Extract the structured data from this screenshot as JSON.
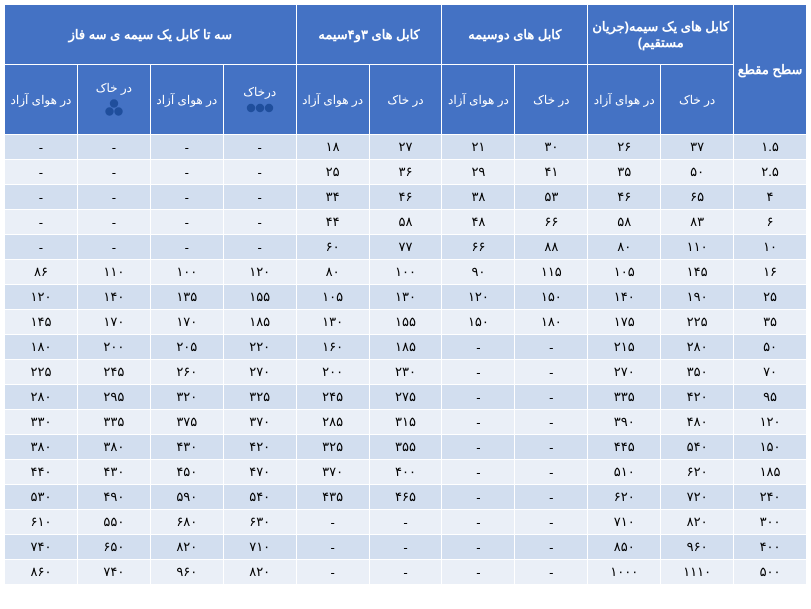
{
  "headers": {
    "section": "سطح مقطع",
    "group1": "کابل های یک سیمه(جریان مستقیم)",
    "group2": "کابل های دوسیمه",
    "group3": "کابل های ۳و۴سیمه",
    "group4": "سه تا کابل یک سیمه ی سه فاز",
    "sub_soil": "در خاک",
    "sub_air": "در هوای آزاد",
    "sub_soil_row": "درخاک",
    "sub_air2": "در هوای آزاد",
    "sub_soil2": "در خاک",
    "sub_air3": "در هوای آزاد"
  },
  "colors": {
    "header_bg": "#4472c4",
    "row_odd": "#d2deef",
    "row_even": "#eaeff7",
    "border": "#ffffff",
    "header_text": "#ffffff",
    "cell_text": "#000000",
    "icon_fill": "#1f4e9c"
  },
  "rows": [
    [
      "۱.۵",
      "۳۷",
      "۲۶",
      "۳۰",
      "۲۱",
      "۲۷",
      "۱۸",
      "-",
      "-",
      "-",
      "-"
    ],
    [
      "۲.۵",
      "۵۰",
      "۳۵",
      "۴۱",
      "۲۹",
      "۳۶",
      "۲۵",
      "-",
      "-",
      "-",
      "-"
    ],
    [
      "۴",
      "۶۵",
      "۴۶",
      "۵۳",
      "۳۸",
      "۴۶",
      "۳۴",
      "-",
      "-",
      "-",
      "-"
    ],
    [
      "۶",
      "۸۳",
      "۵۸",
      "۶۶",
      "۴۸",
      "۵۸",
      "۴۴",
      "-",
      "-",
      "-",
      "-"
    ],
    [
      "۱۰",
      "۱۱۰",
      "۸۰",
      "۸۸",
      "۶۶",
      "۷۷",
      "۶۰",
      "-",
      "-",
      "-",
      "-"
    ],
    [
      "۱۶",
      "۱۴۵",
      "۱۰۵",
      "۱۱۵",
      "۹۰",
      "۱۰۰",
      "۸۰",
      "۱۲۰",
      "۱۰۰",
      "۱۱۰",
      "۸۶"
    ],
    [
      "۲۵",
      "۱۹۰",
      "۱۴۰",
      "۱۵۰",
      "۱۲۰",
      "۱۳۰",
      "۱۰۵",
      "۱۵۵",
      "۱۳۵",
      "۱۴۰",
      "۱۲۰"
    ],
    [
      "۳۵",
      "۲۲۵",
      "۱۷۵",
      "۱۸۰",
      "۱۵۰",
      "۱۵۵",
      "۱۳۰",
      "۱۸۵",
      "۱۷۰",
      "۱۷۰",
      "۱۴۵"
    ],
    [
      "۵۰",
      "۲۸۰",
      "۲۱۵",
      "-",
      "-",
      "۱۸۵",
      "۱۶۰",
      "۲۲۰",
      "۲۰۵",
      "۲۰۰",
      "۱۸۰"
    ],
    [
      "۷۰",
      "۳۵۰",
      "۲۷۰",
      "-",
      "-",
      "۲۳۰",
      "۲۰۰",
      "۲۷۰",
      "۲۶۰",
      "۲۴۵",
      "۲۲۵"
    ],
    [
      "۹۵",
      "۴۲۰",
      "۳۳۵",
      "-",
      "-",
      "۲۷۵",
      "۲۴۵",
      "۳۲۵",
      "۳۲۰",
      "۲۹۵",
      "۲۸۰"
    ],
    [
      "۱۲۰",
      "۴۸۰",
      "۳۹۰",
      "-",
      "-",
      "۳۱۵",
      "۲۸۵",
      "۳۷۰",
      "۳۷۵",
      "۳۳۵",
      "۳۳۰"
    ],
    [
      "۱۵۰",
      "۵۴۰",
      "۴۴۵",
      "-",
      "-",
      "۳۵۵",
      "۳۲۵",
      "۴۲۰",
      "۴۳۰",
      "۳۸۰",
      "۳۸۰"
    ],
    [
      "۱۸۵",
      "۶۲۰",
      "۵۱۰",
      "-",
      "-",
      "۴۰۰",
      "۳۷۰",
      "۴۷۰",
      "۴۵۰",
      "۴۳۰",
      "۴۴۰"
    ],
    [
      "۲۴۰",
      "۷۲۰",
      "۶۲۰",
      "-",
      "-",
      "۴۶۵",
      "۴۳۵",
      "۵۴۰",
      "۵۹۰",
      "۴۹۰",
      "۵۳۰"
    ],
    [
      "۳۰۰",
      "۸۲۰",
      "۷۱۰",
      "-",
      "-",
      "-",
      "-",
      "۶۳۰",
      "۶۸۰",
      "۵۵۰",
      "۶۱۰"
    ],
    [
      "۴۰۰",
      "۹۶۰",
      "۸۵۰",
      "-",
      "-",
      "-",
      "-",
      "۷۱۰",
      "۸۲۰",
      "۶۵۰",
      "۷۴۰"
    ],
    [
      "۵۰۰",
      "۱۱۱۰",
      "۱۰۰۰",
      "-",
      "-",
      "-",
      "-",
      "۸۲۰",
      "۹۶۰",
      "۷۴۰",
      "۸۶۰"
    ]
  ]
}
